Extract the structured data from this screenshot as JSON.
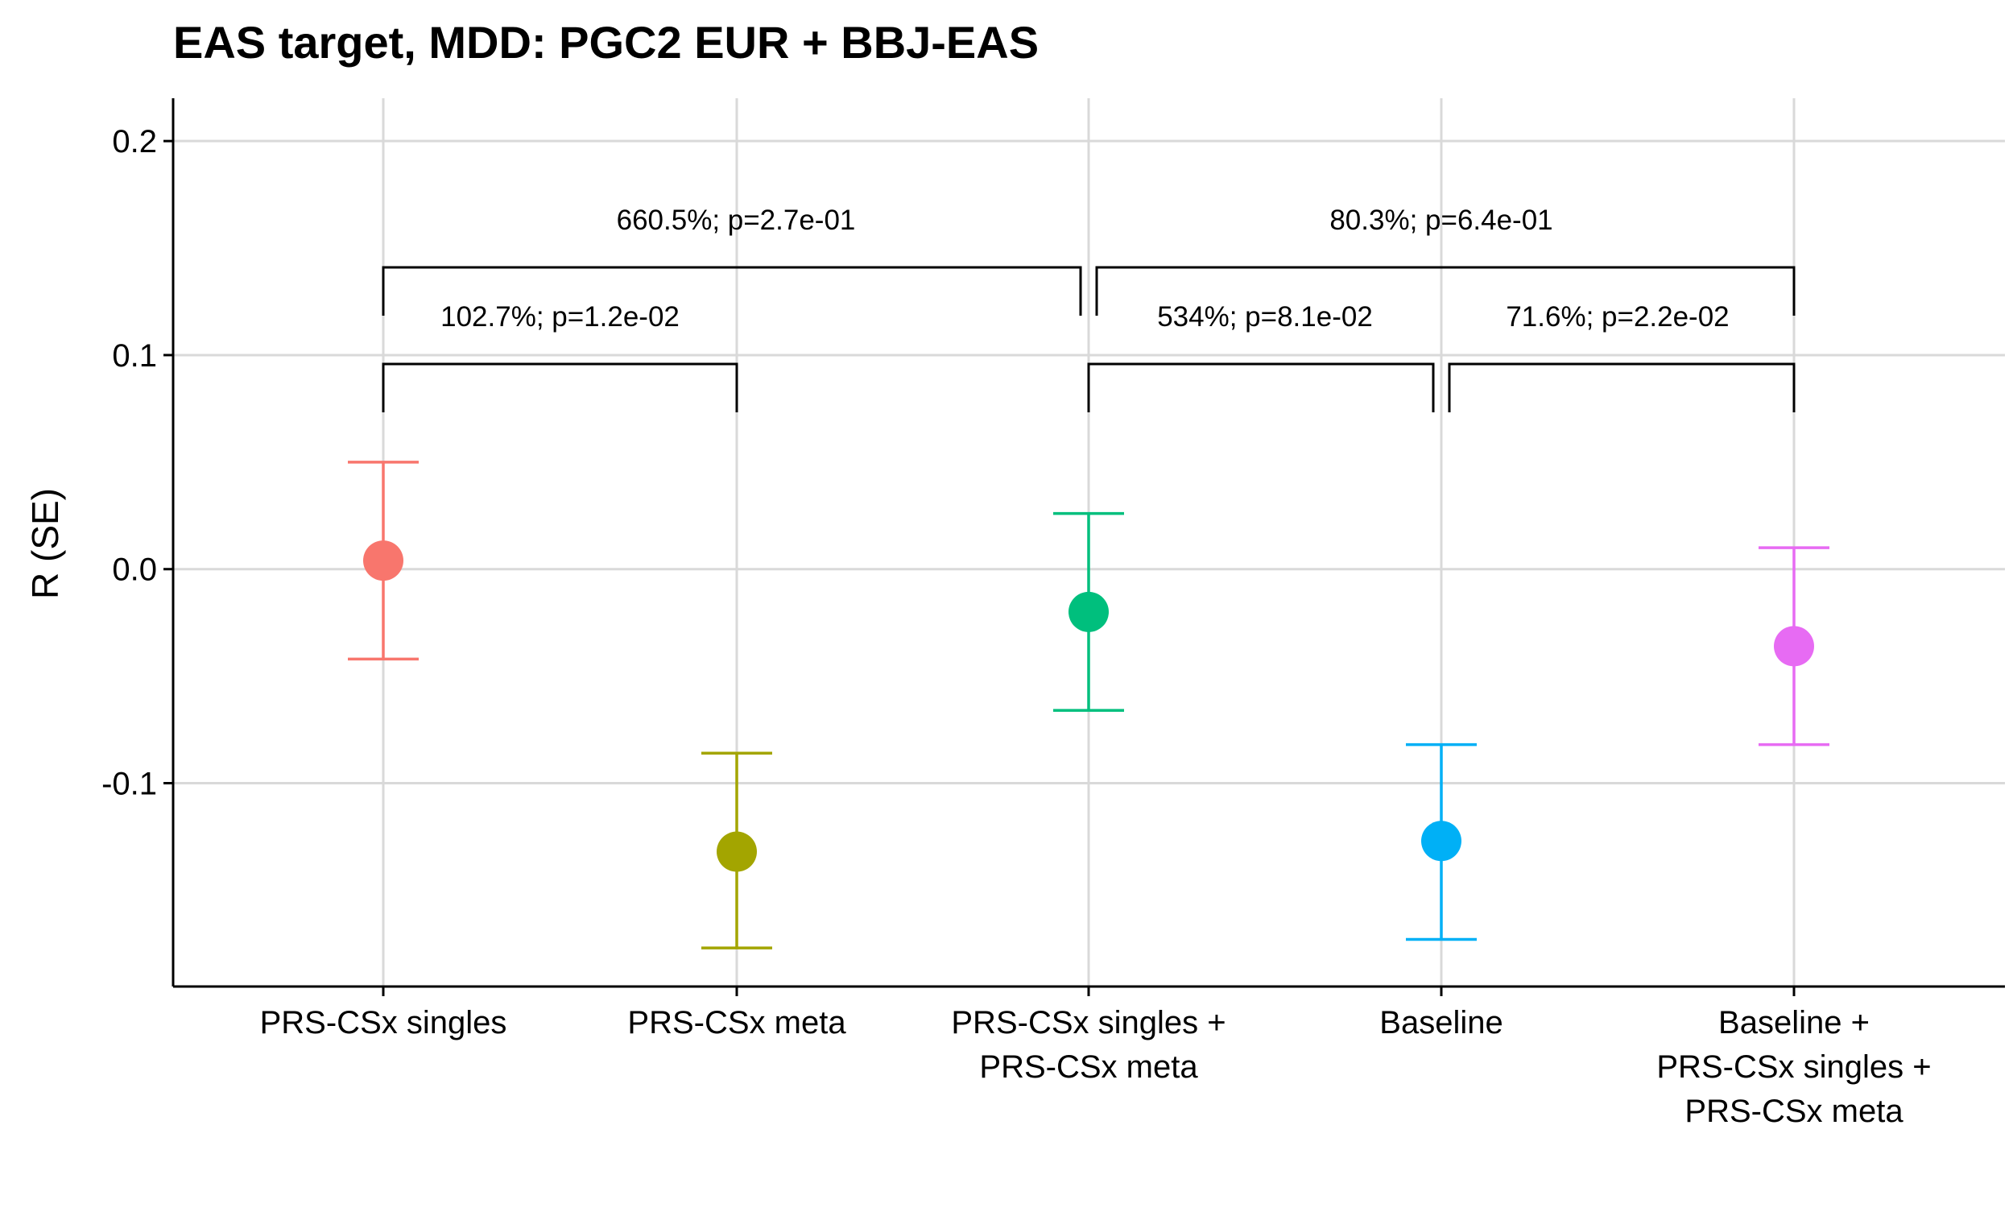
{
  "chart_data": {
    "type": "scatter",
    "title": "EAS target, MDD: PGC2 EUR + BBJ-EAS",
    "xlabel": "",
    "ylabel": "R (SE)",
    "ylim": [
      -0.195,
      0.22
    ],
    "yticks": [
      0.2,
      0.1,
      0.0,
      -0.1
    ],
    "ytick_labels": [
      "0.2",
      "0.1",
      "0.0",
      "-0.1"
    ],
    "grid": true,
    "categories": [
      [
        "PRS-CSx singles"
      ],
      [
        "PRS-CSx meta"
      ],
      [
        "PRS-CSx singles +",
        "PRS-CSx meta"
      ],
      [
        "Baseline"
      ],
      [
        "Baseline +",
        "PRS-CSx singles +",
        "PRS-CSx meta"
      ]
    ],
    "points": [
      {
        "category": 0,
        "value": 0.004,
        "se_low": -0.042,
        "se_high": 0.05,
        "color": "#F8766D"
      },
      {
        "category": 1,
        "value": -0.132,
        "se_low": -0.177,
        "se_high": -0.086,
        "color": "#A3A500"
      },
      {
        "category": 2,
        "value": -0.02,
        "se_low": -0.066,
        "se_high": 0.026,
        "color": "#00BF7D"
      },
      {
        "category": 3,
        "value": -0.127,
        "se_low": -0.173,
        "se_high": -0.082,
        "color": "#00B0F6"
      },
      {
        "category": 4,
        "value": -0.036,
        "se_low": -0.082,
        "se_high": 0.01,
        "color": "#E76BF3"
      }
    ],
    "comparisons": [
      {
        "from": 0,
        "to": 1,
        "level": 1,
        "label": "102.7%; p=1.2e-02"
      },
      {
        "from": 2,
        "to": 3,
        "level": 1,
        "label": "534%; p=8.1e-02"
      },
      {
        "from": 3,
        "to": 4,
        "level": 1,
        "label": "71.6%; p=2.2e-02"
      },
      {
        "from": 0,
        "to": 2,
        "level": 2,
        "label": "660.5%; p=2.7e-01"
      },
      {
        "from": 2,
        "to": 4,
        "level": 2,
        "label": "80.3%; p=6.4e-01"
      }
    ]
  }
}
